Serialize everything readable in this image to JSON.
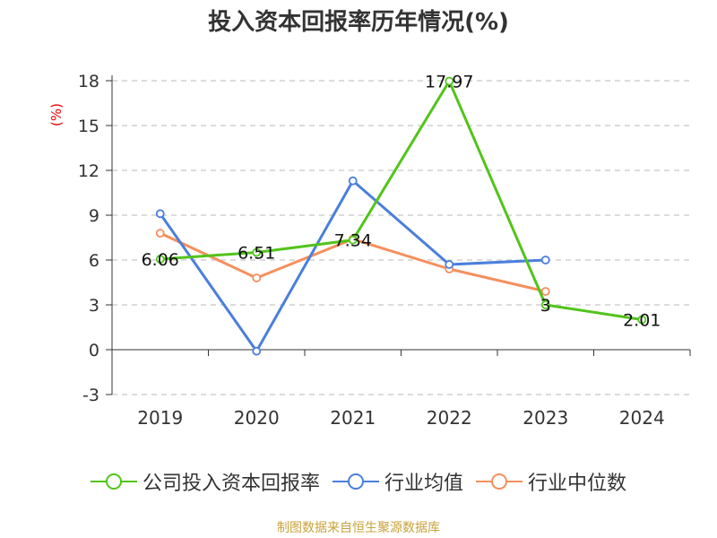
{
  "chart_data": {
    "type": "line",
    "title": "投入资本回报率历年情况(%)",
    "ylabel": "(%)",
    "categories": [
      "2019",
      "2020",
      "2021",
      "2022",
      "2023",
      "2024"
    ],
    "ylim": [
      -3,
      18
    ],
    "yticks": [
      18,
      15,
      12,
      9,
      6,
      3,
      0,
      -3
    ],
    "grid": true,
    "legend_position": "bottom",
    "series": [
      {
        "name": "公司投入资本回报率",
        "color": "#52c41a",
        "values": [
          6.06,
          6.51,
          7.34,
          17.97,
          3,
          2.01
        ],
        "labels": [
          "6.06",
          "6.51",
          "7.34",
          "17.97",
          "3",
          "2.01"
        ]
      },
      {
        "name": "行业均值",
        "color": "#4a7fdc",
        "values": [
          9.1,
          -0.1,
          11.3,
          5.7,
          6.0,
          null
        ]
      },
      {
        "name": "行业中位数",
        "color": "#f58f5c",
        "values": [
          7.8,
          4.8,
          7.4,
          5.4,
          3.9,
          null
        ]
      }
    ]
  },
  "source": "制图数据来自恒生聚源数据库"
}
